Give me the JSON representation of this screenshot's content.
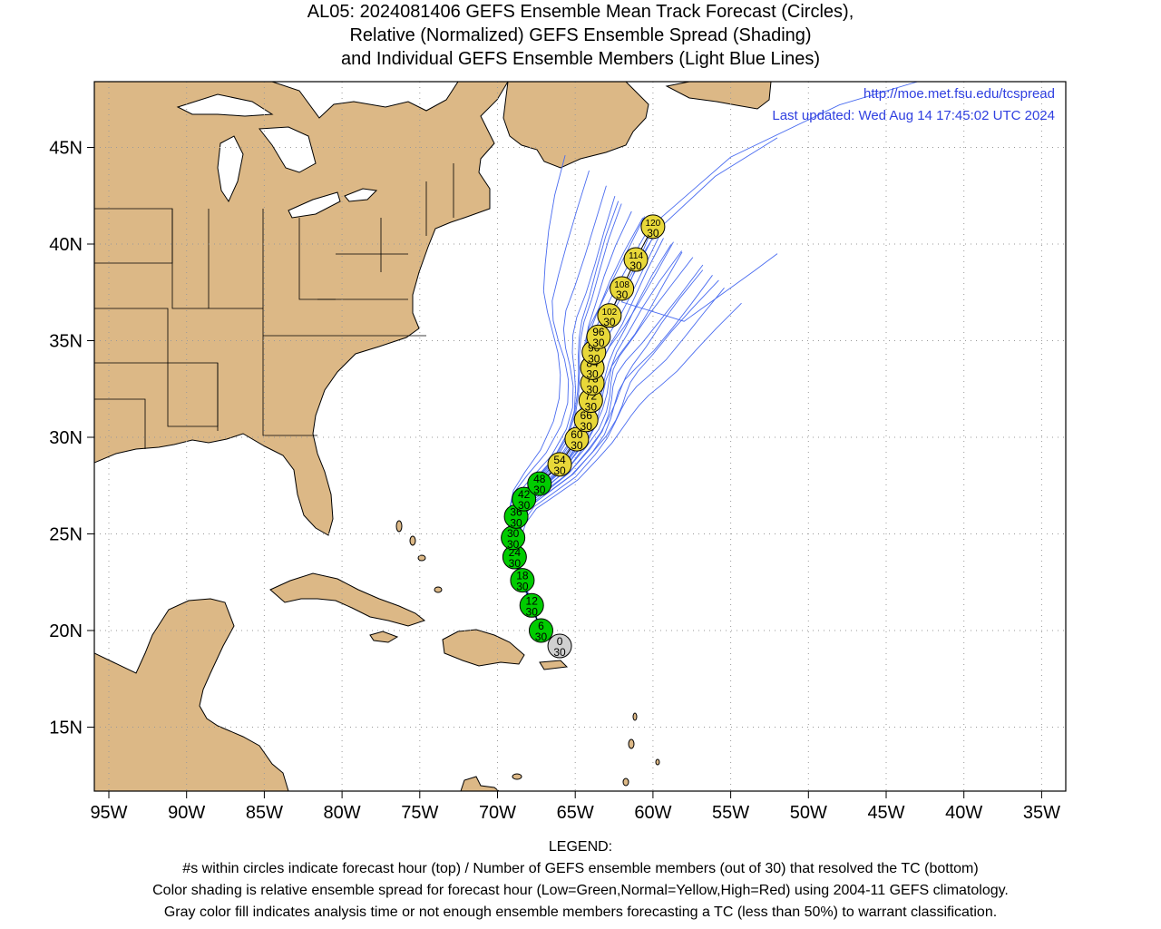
{
  "title": {
    "line1": "AL05: 2024081406 GEFS Ensemble Mean Track Forecast (Circles),",
    "line2": "Relative (Normalized) GEFS Ensemble Spread (Shading)",
    "line3": "and Individual GEFS Ensemble Members (Light Blue Lines)"
  },
  "credits": {
    "url": "http://moe.met.fsu.edu/tcspread",
    "updated": "Last updated: Wed Aug 14 17:45:02 UTC 2024"
  },
  "axes": {
    "x_ticks": [
      "95W",
      "90W",
      "85W",
      "80W",
      "75W",
      "70W",
      "65W",
      "60W",
      "55W",
      "50W",
      "45W",
      "40W",
      "35W"
    ],
    "y_ticks": [
      "15N",
      "20N",
      "25N",
      "30N",
      "35N",
      "40N",
      "45N"
    ]
  },
  "colors": {
    "land": "#dcb886",
    "ocean": "#ffffff",
    "member_line": "#4a6cf0",
    "low_spread": "#00cc00",
    "normal_spread": "#e8d839",
    "analysis": "#d0d0d0",
    "credit_text": "#3040e0"
  },
  "track": [
    {
      "hour": "0",
      "members": "30",
      "lon": -66.0,
      "lat": 19.2,
      "spread": "analysis"
    },
    {
      "hour": "6",
      "members": "30",
      "lon": -67.2,
      "lat": 20.0,
      "spread": "low"
    },
    {
      "hour": "12",
      "members": "30",
      "lon": -67.8,
      "lat": 21.3,
      "spread": "low"
    },
    {
      "hour": "18",
      "members": "30",
      "lon": -68.4,
      "lat": 22.6,
      "spread": "low"
    },
    {
      "hour": "24",
      "members": "30",
      "lon": -68.9,
      "lat": 23.8,
      "spread": "low"
    },
    {
      "hour": "30",
      "members": "30",
      "lon": -69.0,
      "lat": 24.8,
      "spread": "low"
    },
    {
      "hour": "36",
      "members": "30",
      "lon": -68.8,
      "lat": 25.9,
      "spread": "low"
    },
    {
      "hour": "42",
      "members": "30",
      "lon": -68.3,
      "lat": 26.8,
      "spread": "low"
    },
    {
      "hour": "48",
      "members": "30",
      "lon": -67.3,
      "lat": 27.6,
      "spread": "low"
    },
    {
      "hour": "54",
      "members": "30",
      "lon": -66.0,
      "lat": 28.6,
      "spread": "normal"
    },
    {
      "hour": "60",
      "members": "30",
      "lon": -64.9,
      "lat": 29.9,
      "spread": "normal"
    },
    {
      "hour": "66",
      "members": "30",
      "lon": -64.3,
      "lat": 30.9,
      "spread": "normal"
    },
    {
      "hour": "72",
      "members": "30",
      "lon": -64.0,
      "lat": 31.9,
      "spread": "normal"
    },
    {
      "hour": "78",
      "members": "30",
      "lon": -63.9,
      "lat": 32.8,
      "spread": "normal"
    },
    {
      "hour": "84",
      "members": "30",
      "lon": -63.9,
      "lat": 33.6,
      "spread": "normal"
    },
    {
      "hour": "90",
      "members": "30",
      "lon": -63.8,
      "lat": 34.4,
      "spread": "normal"
    },
    {
      "hour": "96",
      "members": "30",
      "lon": -63.5,
      "lat": 35.2,
      "spread": "normal"
    },
    {
      "hour": "102",
      "members": "30",
      "lon": -62.8,
      "lat": 36.3,
      "spread": "normal"
    },
    {
      "hour": "108",
      "members": "30",
      "lon": -62.0,
      "lat": 37.7,
      "spread": "normal"
    },
    {
      "hour": "114",
      "members": "30",
      "lon": -61.1,
      "lat": 39.2,
      "spread": "normal"
    },
    {
      "hour": "120",
      "members": "30",
      "lon": -60.0,
      "lat": 40.9,
      "spread": "normal"
    }
  ],
  "legend": {
    "heading": "LEGEND:",
    "line1": "#s within circles indicate forecast hour (top) / Number of GEFS ensemble members (out of 30) that resolved the TC (bottom)",
    "line2": "Color shading is relative ensemble spread for forecast hour (Low=Green,Normal=Yellow,High=Red) using 2004-11 GEFS climatology.",
    "line3": "Gray color fill indicates analysis time or not enough ensemble members forecasting a TC (less than 50%) to warrant classification."
  }
}
